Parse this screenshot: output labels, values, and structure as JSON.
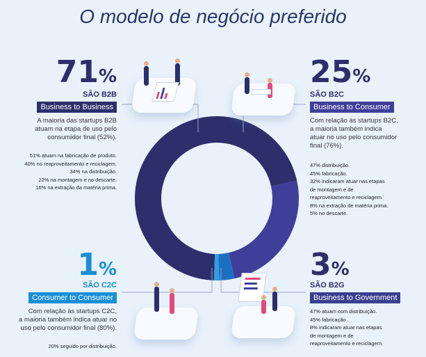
{
  "title": "O modelo de negócio preferido",
  "colors": {
    "b2b": "#2c2f6b",
    "b2c": "#3f3f9a",
    "c2c": "#1a8fd6",
    "b2g": "#3b3f8f",
    "accent_light": "#2f9fe0"
  },
  "b2b": {
    "number": "71",
    "pct": "%",
    "sao": "SÃO B2B",
    "tag": "Business to Business",
    "desc": [
      "A maioria das startups B2B",
      "atuam na etapa de uso pelo",
      "consumidor final (52%)."
    ],
    "details": [
      "51% atuam na fabricação de produto.",
      "40% no reaproveitamento e reciclagem.",
      "34% na distribuição.",
      "22% na montagem e no descarte.",
      "16% na extração da matéria prima."
    ]
  },
  "b2c": {
    "number": "25",
    "pct": "%",
    "sao": "SÃO B2C",
    "tag": "Business to Consumer",
    "desc": [
      "Com relação às startups B2C,",
      "a maioria também indica",
      "atuar no uso pelo consumidor",
      "final (76%)."
    ],
    "details": [
      "47% distribuição.",
      "45% fabricação.",
      "32% indicaram atuar nas etapas",
      "de montagem e de",
      "reaproveitamento e reciclagem.",
      "8% na extração de matéria prima.",
      "5% no descarte."
    ]
  },
  "c2c": {
    "number": "1",
    "pct": "%",
    "sao": "SÃO C2C",
    "tag": "Consumer to Consumer",
    "desc": [
      "Com relação às startups C2C,",
      "a maioria também indica atuar no",
      "uso pelo consumidor final (80%)."
    ],
    "details": [
      "20% seguido por distribuição."
    ]
  },
  "b2g": {
    "number": "3",
    "pct": "%",
    "sao": "SÃO B2G",
    "tag": "Business to Government",
    "details": [
      "47% atuam com distribuição.",
      "45% fabricação .",
      "8% indicaram atuar nas etapas",
      "de montagem e de",
      "reaproveitamento e reciclagem."
    ]
  },
  "chart_data": {
    "type": "pie",
    "donut": true,
    "categories": [
      "B2B",
      "B2C",
      "C2C",
      "B2G"
    ],
    "values": [
      71,
      25,
      1,
      3
    ],
    "colors": [
      "#2c2f6b",
      "#3f3f9a",
      "#2f9fe0",
      "#1a6fc0"
    ]
  }
}
